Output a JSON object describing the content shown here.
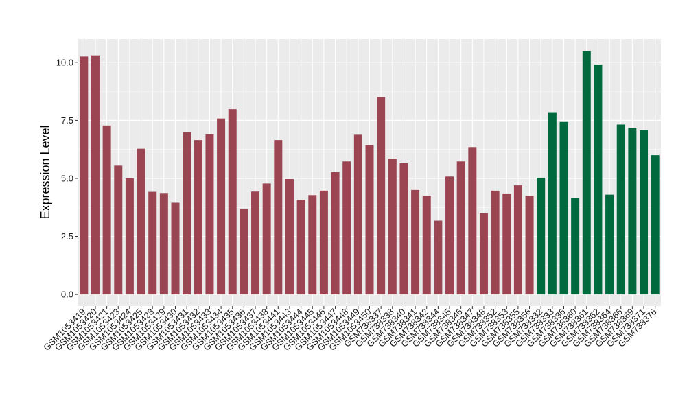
{
  "chart_data": {
    "type": "bar",
    "ylabel": "Expression Level",
    "xlabel": "",
    "ylim": [
      -0.5,
      11.0
    ],
    "yticks": [
      0.0,
      2.5,
      5.0,
      7.5,
      10.0
    ],
    "ytick_labels": [
      "0.0",
      "2.5",
      "5.0",
      "7.5",
      "10.0"
    ],
    "grid": true,
    "colors": {
      "group1": "#9B4452",
      "group2": "#00693E",
      "panel": "#EBEBEB",
      "gridline": "#FFFFFF"
    },
    "categories": [
      "GSM1053419",
      "GSM1053420",
      "GSM1053421",
      "GSM1053423",
      "GSM1053424",
      "GSM1053425",
      "GSM1053428",
      "GSM1053429",
      "GSM1053430",
      "GSM1053431",
      "GSM1053432",
      "GSM1053433",
      "GSM1053434",
      "GSM1053435",
      "GSM1053436",
      "GSM1053437",
      "GSM1053438",
      "GSM1053441",
      "GSM1053443",
      "GSM1053444",
      "GSM1053445",
      "GSM1053446",
      "GSM1053447",
      "GSM1053448",
      "GSM1053449",
      "GSM1053450",
      "GSM738337",
      "GSM738338",
      "GSM738340",
      "GSM738341",
      "GSM738342",
      "GSM738344",
      "GSM738345",
      "GSM738346",
      "GSM738347",
      "GSM738348",
      "GSM738352",
      "GSM738353",
      "GSM738355",
      "GSM738356",
      "GSM738332",
      "GSM738333",
      "GSM738336",
      "GSM738360",
      "GSM738361",
      "GSM738362",
      "GSM738364",
      "GSM738366",
      "GSM738369",
      "GSM738371",
      "GSM738376"
    ],
    "values": [
      10.25,
      10.3,
      7.28,
      5.55,
      5.0,
      6.28,
      4.42,
      4.37,
      3.95,
      7.0,
      6.65,
      6.9,
      7.58,
      7.98,
      3.7,
      4.43,
      4.78,
      6.65,
      4.97,
      4.08,
      4.28,
      4.47,
      5.27,
      5.73,
      6.88,
      6.43,
      8.5,
      5.85,
      5.65,
      4.5,
      4.25,
      3.18,
      5.08,
      5.73,
      6.35,
      3.5,
      4.47,
      4.35,
      4.7,
      4.25,
      5.03,
      7.85,
      7.43,
      4.17,
      10.48,
      9.9,
      4.3,
      7.32,
      7.18,
      7.07,
      6.0
    ],
    "group_sizes": [
      40,
      11
    ]
  }
}
